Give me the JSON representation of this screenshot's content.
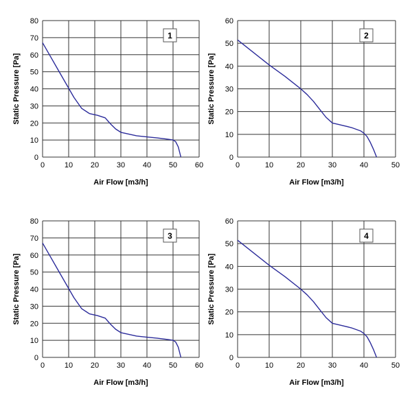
{
  "colors": {
    "curve": "#2b2b9a",
    "grid": "#333333",
    "label_box_fill": "#ffffff",
    "label_box_border": "#555555"
  },
  "chart_data": [
    {
      "type": "line",
      "panel_label": "1",
      "xlabel": "Air Flow [m3/h]",
      "ylabel": "Static Pressure [Pa]",
      "xlim": [
        0,
        60
      ],
      "ylim": [
        0,
        80
      ],
      "x_ticks": [
        0,
        10,
        20,
        30,
        40,
        50,
        60
      ],
      "y_ticks": [
        0,
        10,
        20,
        30,
        40,
        50,
        60,
        70,
        80
      ],
      "grid": true,
      "series": [
        {
          "x": [
            0,
            3,
            6,
            9,
            12,
            15,
            18,
            21,
            24,
            26,
            28,
            30,
            33,
            36,
            40,
            44,
            48,
            50,
            51,
            52,
            52.5,
            53
          ],
          "y": [
            67,
            59,
            51,
            43,
            35,
            28.5,
            25.5,
            24.5,
            23,
            19.5,
            16.5,
            14.5,
            13.5,
            12.5,
            11.8,
            11.2,
            10.5,
            10,
            9,
            6,
            3,
            0
          ]
        }
      ]
    },
    {
      "type": "line",
      "panel_label": "2",
      "xlabel": "Air Flow [m3/h]",
      "ylabel": "Static Pressure [Pa]",
      "xlim": [
        0,
        50
      ],
      "ylim": [
        0,
        60
      ],
      "x_ticks": [
        0,
        10,
        20,
        30,
        40,
        50
      ],
      "y_ticks": [
        0,
        10,
        20,
        30,
        40,
        50,
        60
      ],
      "grid": true,
      "series": [
        {
          "x": [
            0,
            5,
            10,
            15,
            20,
            22,
            24,
            26,
            28,
            30,
            33,
            36,
            39,
            40,
            41,
            42,
            43,
            44
          ],
          "y": [
            51.5,
            46,
            40.5,
            35.5,
            30,
            27.5,
            24.5,
            21,
            17.5,
            15,
            14,
            13,
            11.5,
            10.5,
            9,
            6.5,
            3.5,
            0
          ]
        }
      ]
    },
    {
      "type": "line",
      "panel_label": "3",
      "xlabel": "Air Flow [m3/h]",
      "ylabel": "Static Pressure [Pa]",
      "xlim": [
        0,
        60
      ],
      "ylim": [
        0,
        80
      ],
      "x_ticks": [
        0,
        10,
        20,
        30,
        40,
        50,
        60
      ],
      "y_ticks": [
        0,
        10,
        20,
        30,
        40,
        50,
        60,
        70,
        80
      ],
      "grid": true,
      "series": [
        {
          "x": [
            0,
            3,
            6,
            9,
            12,
            15,
            18,
            21,
            24,
            26,
            28,
            30,
            33,
            36,
            40,
            44,
            48,
            50,
            51,
            52,
            52.5,
            53
          ],
          "y": [
            67,
            59,
            51,
            43,
            35,
            28.5,
            25.5,
            24.5,
            23,
            19.5,
            16.5,
            14.5,
            13.5,
            12.5,
            11.8,
            11.2,
            10.5,
            10,
            9,
            6,
            3,
            0
          ]
        }
      ]
    },
    {
      "type": "line",
      "panel_label": "4",
      "xlabel": "Air Flow [m3/h]",
      "ylabel": "Static Pressure [Pa]",
      "xlim": [
        0,
        50
      ],
      "ylim": [
        0,
        60
      ],
      "x_ticks": [
        0,
        10,
        20,
        30,
        40,
        50
      ],
      "y_ticks": [
        0,
        10,
        20,
        30,
        40,
        50,
        60
      ],
      "grid": true,
      "series": [
        {
          "x": [
            0,
            5,
            10,
            15,
            20,
            22,
            24,
            26,
            28,
            30,
            33,
            36,
            39,
            40,
            41,
            42,
            43,
            44
          ],
          "y": [
            51.5,
            46,
            40.5,
            35.5,
            30,
            27.5,
            24.5,
            21,
            17.5,
            15,
            14,
            13,
            11.5,
            10.5,
            9,
            6.5,
            3.5,
            0
          ]
        }
      ]
    }
  ]
}
